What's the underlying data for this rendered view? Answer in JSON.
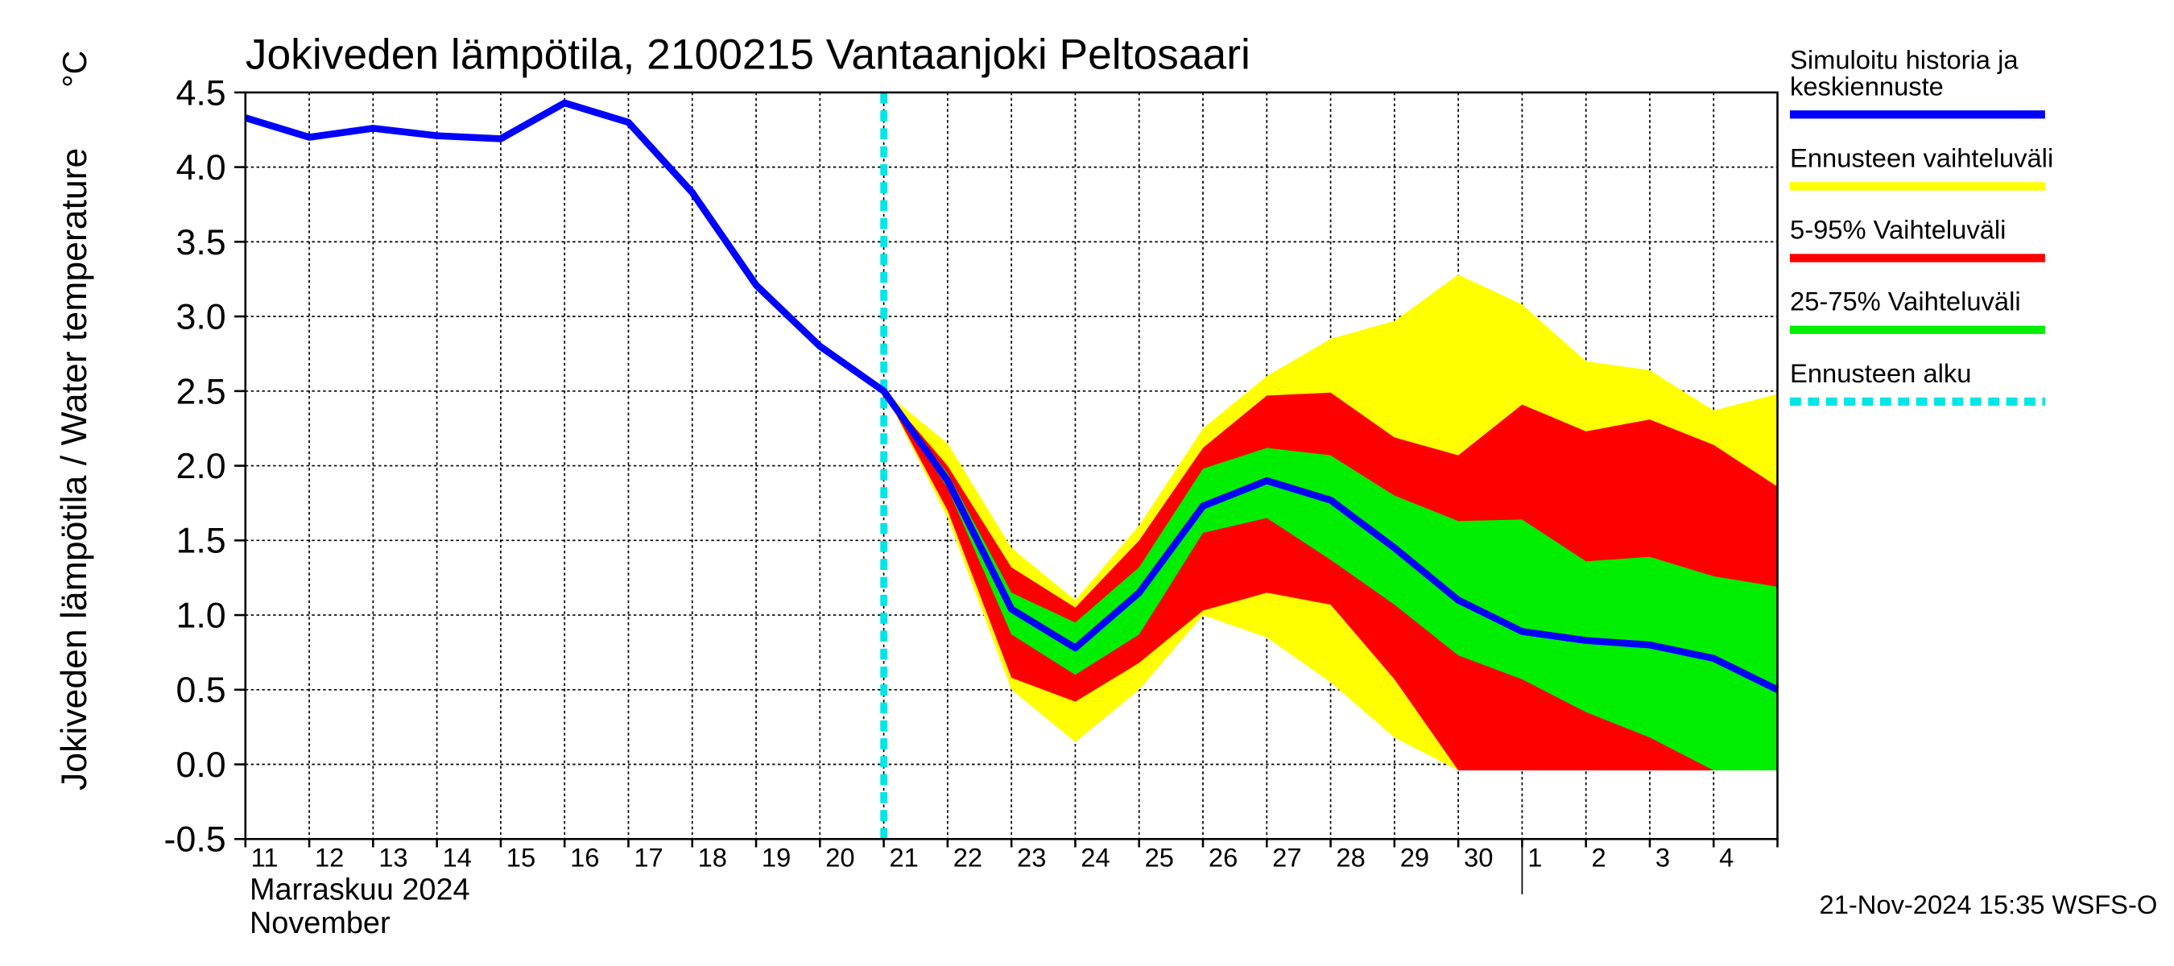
{
  "chart_data": {
    "type": "band-line",
    "title": "Jokiveden lämpötila, 2100215 Vantaanjoki Peltosaari",
    "y_label": "Jokiveden lämpötila / Water temperature",
    "unit": "°C",
    "month_label_fi": "Marraskuu 2024",
    "month_label_en": "November",
    "timestamp": "21-Nov-2024 15:35 WSFS-O",
    "categories": [
      "11",
      "12",
      "13",
      "14",
      "15",
      "16",
      "17",
      "18",
      "19",
      "20",
      "21",
      "22",
      "23",
      "24",
      "25",
      "26",
      "27",
      "28",
      "29",
      "30",
      "1",
      "2",
      "3",
      "4",
      null
    ],
    "month_break": "1",
    "ylim": [
      -0.5,
      4.5
    ],
    "yticks": [
      -0.5,
      {
        "value": 0,
        "label": "0.0"
      },
      0.5,
      {
        "value": 1,
        "label": "1.0"
      },
      1.5,
      {
        "value": 2,
        "label": "2.0"
      },
      2.5,
      {
        "value": 3,
        "label": "3.0"
      },
      3.5,
      {
        "value": 4,
        "label": "4.0"
      },
      4.5
    ],
    "grid": true,
    "bands": [
      {
        "name": "Ennusteen vaihteluväli",
        "color": "#ffff00",
        "upper": [
          null,
          null,
          null,
          null,
          null,
          null,
          null,
          null,
          null,
          null,
          2.5,
          2.15,
          1.45,
          1.1,
          1.6,
          2.25,
          2.6,
          2.85,
          2.97,
          3.28,
          3.08,
          2.7,
          2.64,
          2.37,
          2.48
        ],
        "lower": [
          null,
          null,
          null,
          null,
          null,
          null,
          null,
          null,
          null,
          null,
          2.5,
          1.65,
          0.5,
          0.15,
          0.5,
          1.0,
          0.85,
          0.55,
          0.18,
          -0.04,
          -0.04,
          -0.04,
          -0.04,
          -0.04,
          -0.04
        ]
      },
      {
        "name": "5-95% Vaihteluväli",
        "color": "#ff0000",
        "upper": [
          null,
          null,
          null,
          null,
          null,
          null,
          null,
          null,
          null,
          null,
          2.5,
          2.0,
          1.32,
          1.05,
          1.5,
          2.12,
          2.47,
          2.49,
          2.19,
          2.07,
          2.41,
          2.23,
          2.31,
          2.14,
          1.86
        ],
        "lower": [
          null,
          null,
          null,
          null,
          null,
          null,
          null,
          null,
          null,
          null,
          2.5,
          1.7,
          0.58,
          0.42,
          0.68,
          1.03,
          1.15,
          1.07,
          0.57,
          -0.04,
          -0.04,
          -0.04,
          -0.04,
          -0.04,
          -0.04
        ]
      },
      {
        "name": "25-75% Vaihteluväli",
        "color": "#00ee00",
        "upper": [
          null,
          null,
          null,
          null,
          null,
          null,
          null,
          null,
          null,
          null,
          2.5,
          1.95,
          1.15,
          0.95,
          1.32,
          1.98,
          2.12,
          2.07,
          1.8,
          1.63,
          1.64,
          1.36,
          1.39,
          1.26,
          1.19
        ],
        "lower": [
          null,
          null,
          null,
          null,
          null,
          null,
          null,
          null,
          null,
          null,
          2.5,
          1.85,
          0.87,
          0.6,
          0.87,
          1.55,
          1.65,
          1.37,
          1.07,
          0.73,
          0.57,
          0.35,
          0.18,
          -0.04,
          -0.04
        ]
      }
    ],
    "series": [
      {
        "name": "Simuloitu historia ja keskiennuste",
        "color": "#0000ff",
        "values": [
          4.33,
          4.2,
          4.26,
          4.21,
          4.19,
          4.43,
          4.3,
          3.83,
          3.21,
          2.8,
          2.5,
          1.9,
          1.04,
          0.78,
          1.15,
          1.73,
          1.9,
          1.77,
          1.45,
          1.1,
          0.89,
          0.83,
          0.8,
          0.71,
          0.5
        ]
      }
    ],
    "forecast_start": {
      "name": "Ennusteen alku",
      "color": "#00e5e5",
      "category": "21"
    }
  }
}
